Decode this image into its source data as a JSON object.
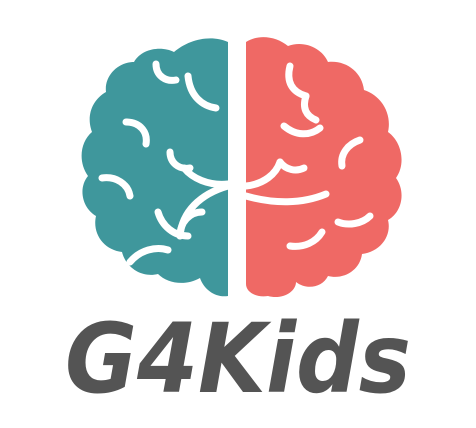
{
  "logo": {
    "wordmark": "G4Kids",
    "colors": {
      "left_hemisphere": "#3f979c",
      "right_hemisphere": "#ef6965",
      "wordmark": "#545454",
      "background": "#ffffff"
    },
    "icon": "brain-icon"
  }
}
